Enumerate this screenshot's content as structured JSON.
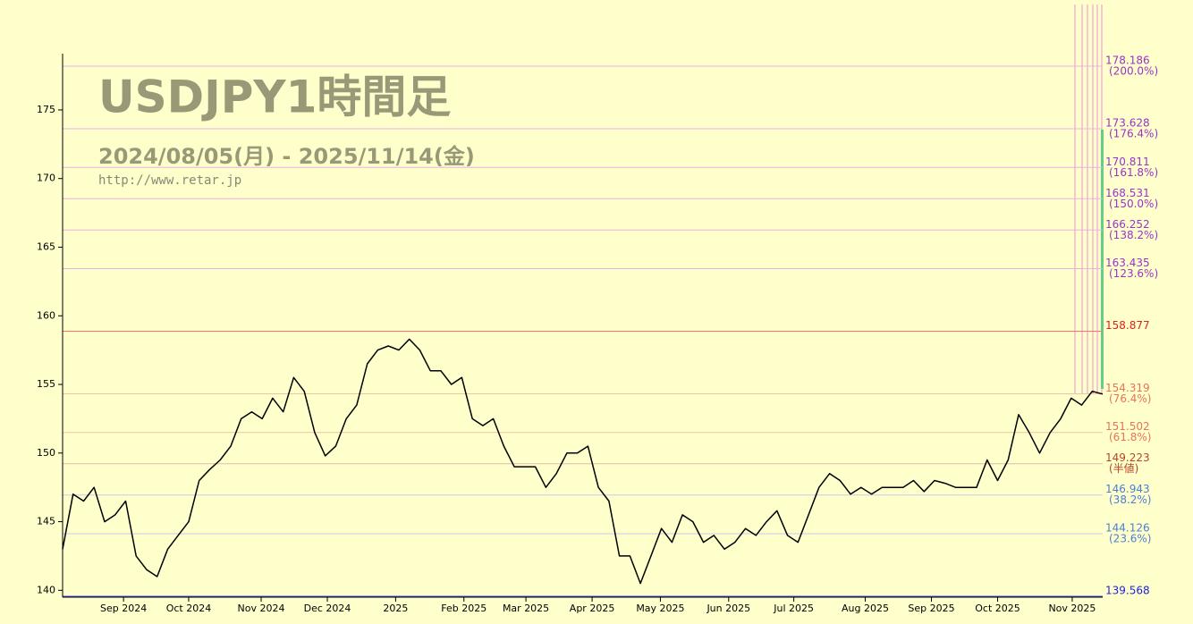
{
  "chart_data": {
    "type": "line",
    "title": "USDJPY1時間足",
    "subtitle": "2024/08/05(月) - 2025/11/14(金)",
    "source": "http://www.retar.jp",
    "color": "#000000",
    "values": [
      143,
      147,
      146.5,
      147.5,
      145,
      145.5,
      146.5,
      142.5,
      141.5,
      141,
      143,
      144,
      145,
      148,
      148.8,
      149.5,
      150.5,
      152.5,
      153,
      152.5,
      154,
      153,
      155.5,
      154.5,
      151.5,
      149.8,
      150.5,
      152.5,
      153.5,
      156.5,
      157.5,
      157.8,
      157.5,
      158.3,
      157.5,
      156,
      156,
      155,
      155.5,
      152.5,
      152,
      152.5,
      150.5,
      149,
      149,
      149,
      147.5,
      148.5,
      150,
      150,
      150.5,
      147.5,
      146.5,
      142.5,
      142.5,
      140.5,
      142.5,
      144.5,
      143.5,
      145.5,
      145,
      143.5,
      144,
      143,
      143.5,
      144.5,
      144,
      145,
      145.8,
      144,
      143.5,
      145.5,
      147.5,
      148.5,
      148,
      147,
      147.5,
      147,
      147.5,
      147.5,
      147.5,
      148,
      147.2,
      148,
      147.8,
      147.5,
      147.5,
      147.5,
      149.5,
      148,
      149.5,
      152.8,
      151.5,
      150,
      151.5,
      152.5,
      154,
      153.5,
      154.5,
      154.3
    ],
    "xlim": [
      0,
      99
    ],
    "xticks": [
      {
        "value": 5.8,
        "label": "Sep 2024"
      },
      {
        "value": 12.0,
        "label": "Oct 2024"
      },
      {
        "value": 18.9,
        "label": "Nov 2024"
      },
      {
        "value": 25.2,
        "label": "Dec 2024"
      },
      {
        "value": 31.7,
        "label": "2025"
      },
      {
        "value": 38.2,
        "label": "Feb 2025"
      },
      {
        "value": 44.1,
        "label": "Mar 2025"
      },
      {
        "value": 50.4,
        "label": "Apr 2025"
      },
      {
        "value": 56.9,
        "label": "May 2025"
      },
      {
        "value": 63.4,
        "label": "Jun 2025"
      },
      {
        "value": 69.6,
        "label": "Jul 2025"
      },
      {
        "value": 76.4,
        "label": "Aug 2025"
      },
      {
        "value": 82.7,
        "label": "Sep 2025"
      },
      {
        "value": 89.0,
        "label": "Oct 2025"
      },
      {
        "value": 96.1,
        "label": "Nov 2025"
      }
    ],
    "ylim": [
      139.5,
      179.1
    ],
    "yticks": [
      140,
      145,
      150,
      155,
      160,
      165,
      170,
      175
    ],
    "levels": [
      {
        "value": 178.186,
        "ratio": "(200.0%)",
        "color": "#9933cc",
        "line": "#e8b0e8"
      },
      {
        "value": 173.628,
        "ratio": "(176.4%)",
        "color": "#9933cc",
        "line": "#e8b0e8"
      },
      {
        "value": 170.811,
        "ratio": "(161.8%)",
        "color": "#9933cc",
        "line": "#e8b0e8"
      },
      {
        "value": 168.531,
        "ratio": "(150.0%)",
        "color": "#9933cc",
        "line": "#e8b0e8"
      },
      {
        "value": 166.252,
        "ratio": "(138.2%)",
        "color": "#9933cc",
        "line": "#e8b0e8"
      },
      {
        "value": 163.435,
        "ratio": "(123.6%)",
        "color": "#9933cc",
        "line": "#e8b0e8"
      },
      {
        "value": 158.877,
        "color": "#dd2222",
        "line": "#ff7070"
      },
      {
        "value": 154.319,
        "ratio": "(76.4%)",
        "color": "#e8735a",
        "line": "#f4c0a8"
      },
      {
        "value": 151.502,
        "ratio": "(61.8%)",
        "color": "#e8735a",
        "line": "#f4c0a8"
      },
      {
        "value": 149.223,
        "ratio": "(半値)",
        "color": "#b5452a",
        "line": "#e8b8a8"
      },
      {
        "value": 146.943,
        "ratio": "(38.2%)",
        "color": "#4a7fd8",
        "line": "#c8c8ec"
      },
      {
        "value": 144.126,
        "ratio": "(23.6%)",
        "color": "#4a7fd8",
        "line": "#c8c8ec"
      },
      {
        "value": 139.568,
        "color": "#2222dd",
        "line": "#4444dd"
      }
    ]
  }
}
